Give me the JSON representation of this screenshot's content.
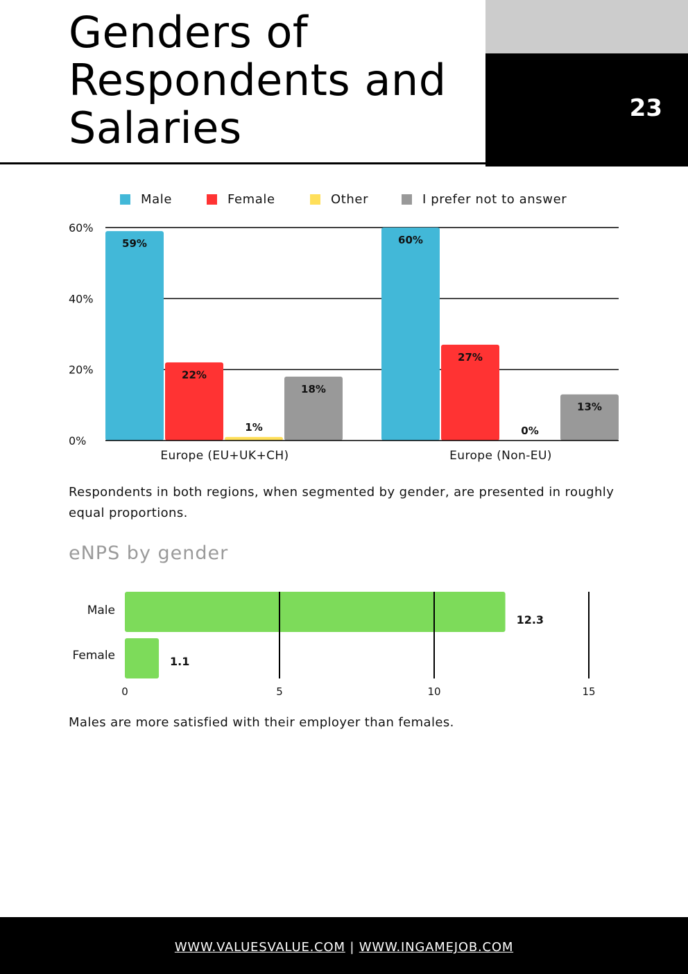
{
  "header": {
    "title_line1": "Genders of",
    "title_line2": "Respondents and",
    "title_line3": "Salaries",
    "page_number": "23"
  },
  "paragraphs": {
    "regions_note": "Respondents in both regions, when segmented by gender, are presented in roughly equal proportions.",
    "enps_note": "Males are more satisfied with their employer than females."
  },
  "enps_title": "eNPS by gender",
  "footer": {
    "link1": "WWW.VALUESVALUE.COM",
    "separator": "|",
    "link2": "WWW.INGAMEJOB.COM"
  },
  "colors": {
    "male": "#42b8d8",
    "female": "#ff3333",
    "other": "#ffdf5a",
    "no_answer": "#999999",
    "enps_bar": "#7ddb5a"
  },
  "chart_data": [
    {
      "type": "bar",
      "title": "",
      "categories": [
        "Europe (EU+UK+CH)",
        "Europe (Non-EU)"
      ],
      "series": [
        {
          "name": "Male",
          "values": [
            59,
            60
          ],
          "labels": [
            "59%",
            "60%"
          ]
        },
        {
          "name": "Female",
          "values": [
            22,
            27
          ],
          "labels": [
            "22%",
            "27%"
          ]
        },
        {
          "name": "Other",
          "values": [
            1,
            0
          ],
          "labels": [
            "1%",
            "0%"
          ]
        },
        {
          "name": "I prefer not to answer",
          "values": [
            18,
            13
          ],
          "labels": [
            "18%",
            "13%"
          ]
        }
      ],
      "ylim": [
        0,
        60
      ],
      "yticks": [
        0,
        20,
        40,
        60
      ],
      "ytick_labels": [
        "0%",
        "20%",
        "40%",
        "60%"
      ],
      "xlabel": "",
      "ylabel": "",
      "grid": true,
      "legend": "top"
    },
    {
      "type": "bar",
      "orientation": "horizontal",
      "title": "eNPS by gender",
      "categories": [
        "Male",
        "Female"
      ],
      "values": [
        12.3,
        1.1
      ],
      "labels": [
        "12.3",
        "1.1"
      ],
      "xlim": [
        0,
        15
      ],
      "xticks": [
        0,
        5,
        10,
        15
      ],
      "xtick_labels": [
        "0",
        "5",
        "10",
        "15"
      ],
      "grid": true
    }
  ]
}
